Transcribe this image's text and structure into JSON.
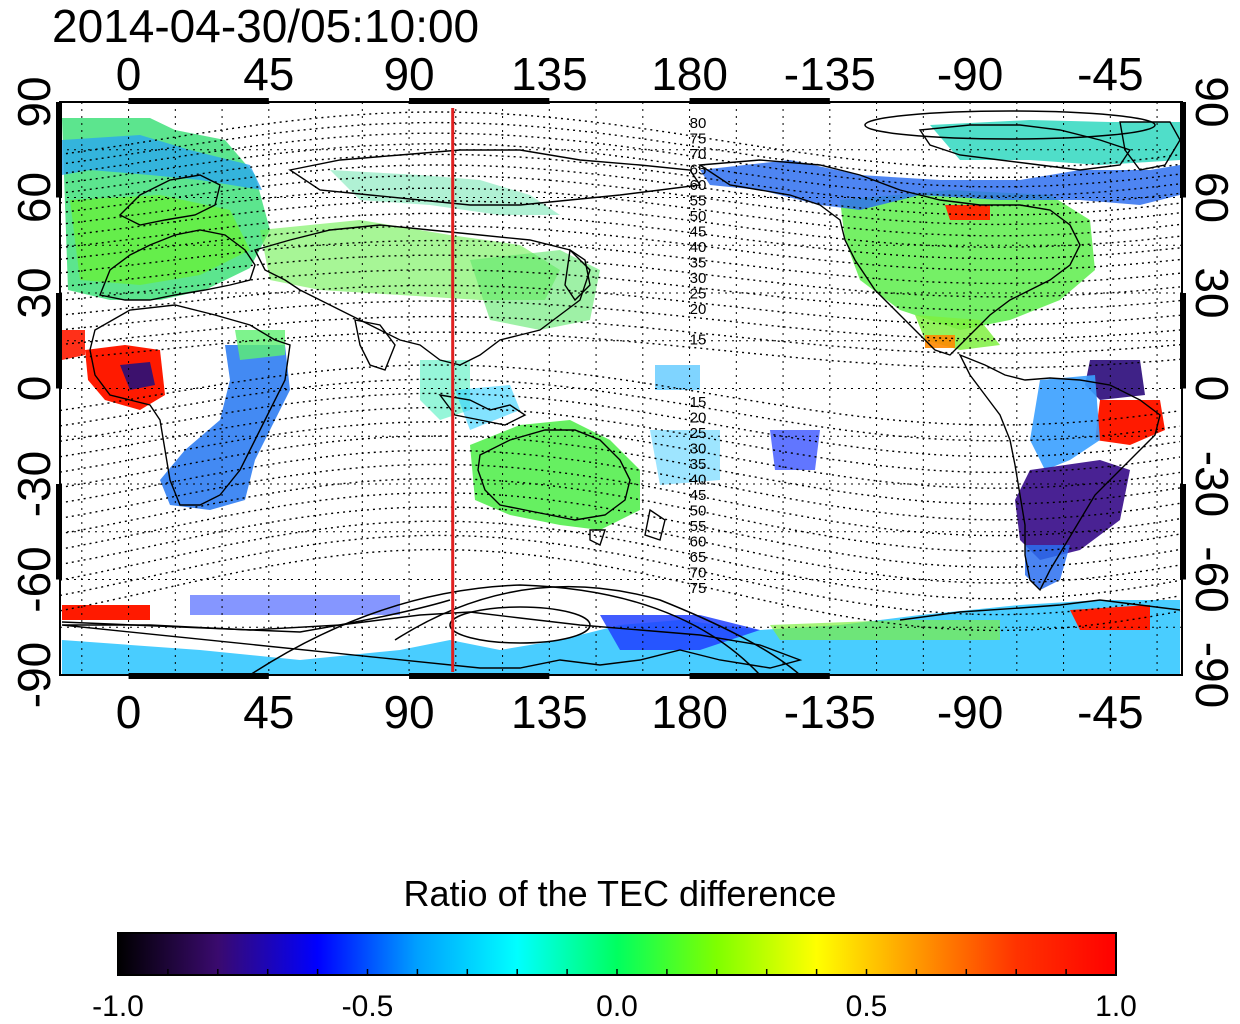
{
  "map": {
    "timestamp": "2014-04-30/05:10:00",
    "top_lon_ticks": [
      "0",
      "45",
      "90",
      "135",
      "180",
      "-135",
      "-90",
      "-45"
    ],
    "bottom_lon_ticks": [
      "0",
      "45",
      "90",
      "135",
      "180",
      "-135",
      "-90",
      "-45"
    ],
    "left_lat_ticks": [
      "90",
      "60",
      "30",
      "0",
      "-30",
      "-60",
      "-90"
    ],
    "right_lat_ticks": [
      "90",
      "60",
      "30",
      "0",
      "-30",
      "-60",
      "-90"
    ],
    "meridian_line_lon": 104,
    "meridian_line_color": "#e02020",
    "contour_labels_north": [
      "80",
      "75",
      "70",
      "65",
      "60",
      "55",
      "50",
      "45",
      "40",
      "35",
      "30",
      "25",
      "20",
      "15"
    ],
    "contour_labels_south": [
      "15",
      "20",
      "25",
      "30",
      "35",
      "40",
      "45",
      "50",
      "55",
      "60",
      "65",
      "70",
      "75"
    ]
  },
  "colorbar": {
    "title": "Ratio of the TEC difference",
    "ticks": [
      "-1.0",
      "-0.5",
      "0.0",
      "0.5",
      "1.0"
    ],
    "stops": [
      "#000000",
      "#3a0a6e",
      "#0000ff",
      "#00a0ff",
      "#00ffff",
      "#00ff60",
      "#7fff00",
      "#ffff00",
      "#ff9900",
      "#ff3300",
      "#ff0000"
    ]
  }
}
